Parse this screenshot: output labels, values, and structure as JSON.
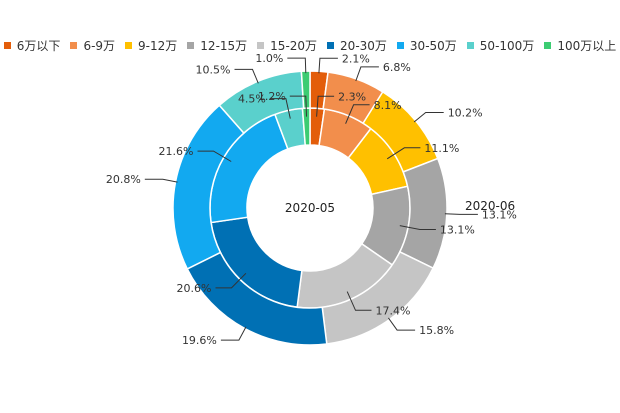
{
  "chart_data": {
    "type": "pie",
    "subtype": "nested-donut",
    "categories": [
      "6万以下",
      "6-9万",
      "9-12万",
      "12-15万",
      "15-20万",
      "20-30万",
      "30-50万",
      "50-100万",
      "100万以上"
    ],
    "colors": [
      "#e35d0a",
      "#f28e4c",
      "#ffc000",
      "#a5a5a5",
      "#c5c5c5",
      "#0070b4",
      "#12a9f0",
      "#5ad0cc",
      "#3ccc72"
    ],
    "series": [
      {
        "name": "2020-05",
        "ring": "inner",
        "values": [
          2.3,
          8.1,
          11.1,
          13.1,
          17.4,
          20.6,
          21.6,
          4.5,
          1.2
        ],
        "labels": [
          "2.3%",
          "8.1%",
          "11.1%",
          "13.1%",
          "17.4%",
          "20.6%",
          "21.6%",
          "4.5%",
          "1.2%"
        ]
      },
      {
        "name": "2020-06",
        "ring": "outer",
        "values": [
          2.1,
          6.8,
          10.2,
          13.1,
          15.8,
          19.6,
          20.8,
          10.5,
          1.0
        ],
        "labels": [
          "2.1%",
          "6.8%",
          "10.2%",
          "13.1%",
          "15.8%",
          "19.6%",
          "20.8%",
          "10.5%",
          "1.0%"
        ]
      }
    ],
    "legend_position": "top"
  }
}
